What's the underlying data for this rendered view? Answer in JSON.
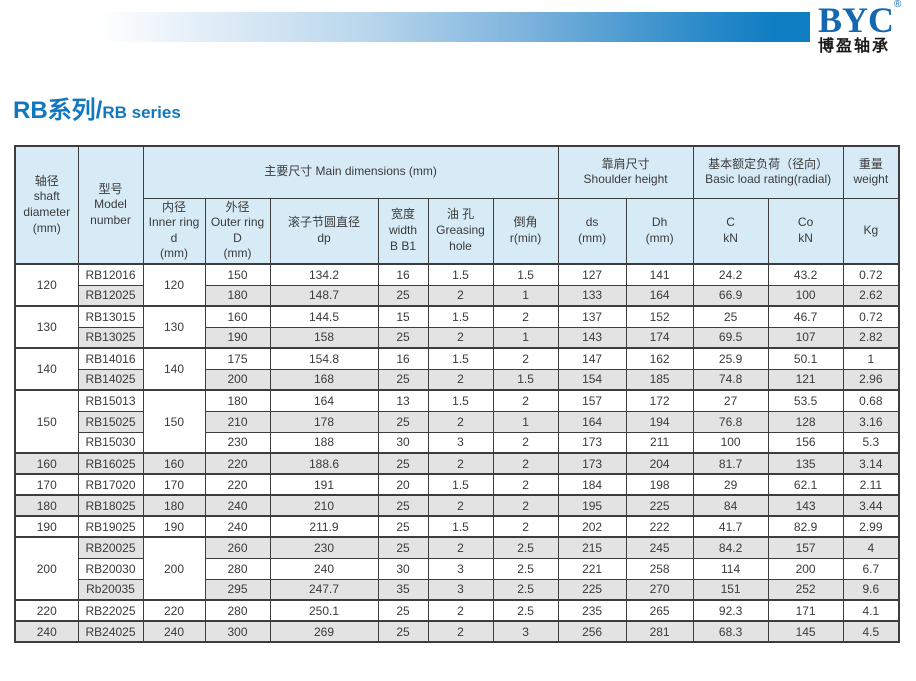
{
  "brand": {
    "logo": "BYC",
    "registered_mark": "®",
    "company_cn": "博盈轴承"
  },
  "title": {
    "cn": "RB系列/",
    "en": "RB series"
  },
  "colors": {
    "accent_blue": "#1178c0",
    "bar_blue": "#0f7dc2",
    "logo_blue": "#1467b1",
    "header_bg": "#d7ebf6",
    "alt_row_bg": "#e3e3e3",
    "border": "#3d3d3d",
    "text": "#3a3a3a"
  },
  "table": {
    "headers": {
      "shaft_diameter": "轴径\nshaft\ndiameter\n(mm)",
      "model": "型号\nModel\nnumber",
      "main_dimensions": "主要尺寸 Main dimensions (mm)",
      "inner_ring": "内径\nInner ring\nd\n(mm)",
      "outer_ring": "外径\nOuter ring\nD\n(mm)",
      "pitch_diameter": "滚子节圆直径\ndp",
      "width": "宽度\nwidth\nB B1",
      "greasing_hole": "油 孔\nGreasing\nhole",
      "chamfer": "倒角\nr(min)",
      "shoulder_height": "靠肩尺寸\nShoulder height",
      "ds": "ds\n(mm)",
      "dh": "Dh\n(mm)",
      "load_rating": "基本额定负荷（径向）\nBasic load rating(radial)",
      "c": "C\nkN",
      "co": "Co\nkN",
      "weight": "重量\nweight",
      "kg": "Kg"
    },
    "groups": [
      {
        "shaft": "120",
        "inner": "120",
        "rows": [
          {
            "model": "RB12016",
            "outer": "150",
            "dp": "134.2",
            "width": "16",
            "grease": "1.5",
            "r": "1.5",
            "ds": "127",
            "dh": "141",
            "c": "24.2",
            "co": "43.2",
            "kg": "0.72"
          },
          {
            "model": "RB12025",
            "outer": "180",
            "dp": "148.7",
            "width": "25",
            "grease": "2",
            "r": "1",
            "ds": "133",
            "dh": "164",
            "c": "66.9",
            "co": "100",
            "kg": "2.62"
          }
        ]
      },
      {
        "shaft": "130",
        "inner": "130",
        "rows": [
          {
            "model": "RB13015",
            "outer": "160",
            "dp": "144.5",
            "width": "15",
            "grease": "1.5",
            "r": "2",
            "ds": "137",
            "dh": "152",
            "c": "25",
            "co": "46.7",
            "kg": "0.72"
          },
          {
            "model": "RB13025",
            "outer": "190",
            "dp": "158",
            "width": "25",
            "grease": "2",
            "r": "1",
            "ds": "143",
            "dh": "174",
            "c": "69.5",
            "co": "107",
            "kg": "2.82"
          }
        ]
      },
      {
        "shaft": "140",
        "inner": "140",
        "rows": [
          {
            "model": "RB14016",
            "outer": "175",
            "dp": "154.8",
            "width": "16",
            "grease": "1.5",
            "r": "2",
            "ds": "147",
            "dh": "162",
            "c": "25.9",
            "co": "50.1",
            "kg": "1"
          },
          {
            "model": "RB14025",
            "outer": "200",
            "dp": "168",
            "width": "25",
            "grease": "2",
            "r": "1.5",
            "ds": "154",
            "dh": "185",
            "c": "74.8",
            "co": "121",
            "kg": "2.96"
          }
        ]
      },
      {
        "shaft": "150",
        "inner": "150",
        "rows": [
          {
            "model": "RB15013",
            "outer": "180",
            "dp": "164",
            "width": "13",
            "grease": "1.5",
            "r": "2",
            "ds": "157",
            "dh": "172",
            "c": "27",
            "co": "53.5",
            "kg": "0.68"
          },
          {
            "model": "RB15025",
            "outer": "210",
            "dp": "178",
            "width": "25",
            "grease": "2",
            "r": "1",
            "ds": "164",
            "dh": "194",
            "c": "76.8",
            "co": "128",
            "kg": "3.16"
          },
          {
            "model": "RB15030",
            "outer": "230",
            "dp": "188",
            "width": "30",
            "grease": "3",
            "r": "2",
            "ds": "173",
            "dh": "211",
            "c": "100",
            "co": "156",
            "kg": "5.3"
          }
        ]
      },
      {
        "shaft": "160",
        "inner": "160",
        "rows": [
          {
            "model": "RB16025",
            "outer": "220",
            "dp": "188.6",
            "width": "25",
            "grease": "2",
            "r": "2",
            "ds": "173",
            "dh": "204",
            "c": "81.7",
            "co": "135",
            "kg": "3.14"
          }
        ]
      },
      {
        "shaft": "170",
        "inner": "170",
        "rows": [
          {
            "model": "RB17020",
            "outer": "220",
            "dp": "191",
            "width": "20",
            "grease": "1.5",
            "r": "2",
            "ds": "184",
            "dh": "198",
            "c": "29",
            "co": "62.1",
            "kg": "2.11"
          }
        ]
      },
      {
        "shaft": "180",
        "inner": "180",
        "rows": [
          {
            "model": "RB18025",
            "outer": "240",
            "dp": "210",
            "width": "25",
            "grease": "2",
            "r": "2",
            "ds": "195",
            "dh": "225",
            "c": "84",
            "co": "143",
            "kg": "3.44"
          }
        ]
      },
      {
        "shaft": "190",
        "inner": "190",
        "rows": [
          {
            "model": "RB19025",
            "outer": "240",
            "dp": "211.9",
            "width": "25",
            "grease": "1.5",
            "r": "2",
            "ds": "202",
            "dh": "222",
            "c": "41.7",
            "co": "82.9",
            "kg": "2.99"
          }
        ]
      },
      {
        "shaft": "200",
        "inner": "200",
        "rows": [
          {
            "model": "RB20025",
            "outer": "260",
            "dp": "230",
            "width": "25",
            "grease": "2",
            "r": "2.5",
            "ds": "215",
            "dh": "245",
            "c": "84.2",
            "co": "157",
            "kg": "4"
          },
          {
            "model": "RB20030",
            "outer": "280",
            "dp": "240",
            "width": "30",
            "grease": "3",
            "r": "2.5",
            "ds": "221",
            "dh": "258",
            "c": "114",
            "co": "200",
            "kg": "6.7"
          },
          {
            "model": "Rb20035",
            "outer": "295",
            "dp": "247.7",
            "width": "35",
            "grease": "3",
            "r": "2.5",
            "ds": "225",
            "dh": "270",
            "c": "151",
            "co": "252",
            "kg": "9.6"
          }
        ]
      },
      {
        "shaft": "220",
        "inner": "220",
        "rows": [
          {
            "model": "RB22025",
            "outer": "280",
            "dp": "250.1",
            "width": "25",
            "grease": "2",
            "r": "2.5",
            "ds": "235",
            "dh": "265",
            "c": "92.3",
            "co": "171",
            "kg": "4.1"
          }
        ]
      },
      {
        "shaft": "240",
        "inner": "240",
        "rows": [
          {
            "model": "RB24025",
            "outer": "300",
            "dp": "269",
            "width": "25",
            "grease": "2",
            "r": "3",
            "ds": "256",
            "dh": "281",
            "c": "68.3",
            "co": "145",
            "kg": "4.5"
          }
        ]
      }
    ]
  }
}
